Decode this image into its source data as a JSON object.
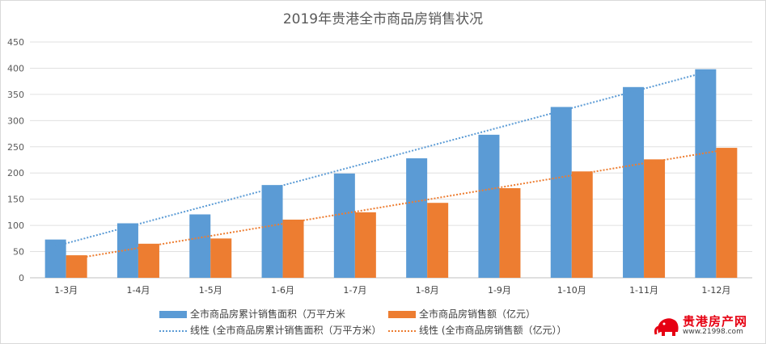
{
  "chart_data": {
    "type": "bar",
    "title": "2019年贵港全市商品房销售状况",
    "categories": [
      "1-3月",
      "1-4月",
      "1-5月",
      "1-6月",
      "1-7月",
      "1-8月",
      "1-9月",
      "1-10月",
      "1-11月",
      "1-12月"
    ],
    "series": [
      {
        "name": "全市商品房累计销售面积（万平方米",
        "color": "#5b9bd5",
        "values": [
          73,
          104,
          121,
          177,
          199,
          228,
          273,
          326,
          364,
          398
        ]
      },
      {
        "name": "全市商品房销售额（亿元）",
        "color": "#ed7d31",
        "values": [
          43,
          65,
          75,
          111,
          125,
          143,
          171,
          203,
          226,
          248
        ]
      }
    ],
    "trendlines": [
      {
        "name": "线性 (全市商品房累计销售面积（万平方米）",
        "color": "#5b9bd5"
      },
      {
        "name": "线性 (全市商品房销售额（亿元））",
        "color": "#ed7d31"
      }
    ],
    "ylim": [
      0,
      450
    ],
    "yticks": [
      0,
      50,
      100,
      150,
      200,
      250,
      300,
      350,
      400,
      450
    ],
    "xlabel": "",
    "ylabel": "",
    "grid": true,
    "legend": "bottom"
  },
  "watermark": {
    "name": "贵港房产网",
    "url": "www.21998.com"
  }
}
